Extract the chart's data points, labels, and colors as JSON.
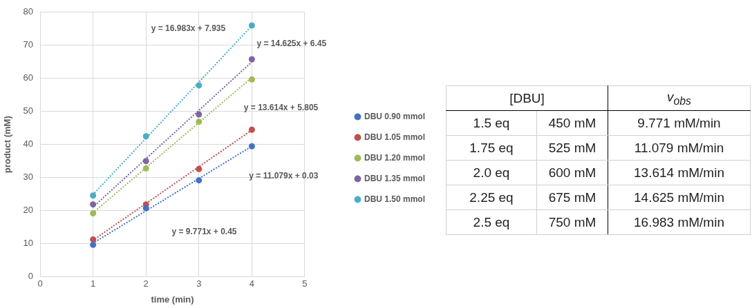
{
  "chart_data": {
    "type": "scatter",
    "xlabel": "time (min)",
    "ylabel": "product (mM)",
    "xlim": [
      0,
      5
    ],
    "xticks": [
      0,
      1,
      2,
      3,
      4,
      5
    ],
    "ylim": [
      0,
      80
    ],
    "yticks": [
      0,
      10,
      20,
      30,
      40,
      50,
      60,
      70,
      80
    ],
    "grid": true,
    "legend": "right",
    "marker": "circle",
    "series": [
      {
        "name": "DBU 0.90 mmol",
        "color": "#4472c4",
        "x": [
          1,
          2,
          3,
          4
        ],
        "values": [
          9.7,
          20.8,
          29.2,
          39.5
        ]
      },
      {
        "name": "DBU 1.05 mmol",
        "color": "#c0504d",
        "x": [
          1,
          2,
          3,
          4
        ],
        "values": [
          11.3,
          21.9,
          32.6,
          44.5
        ]
      },
      {
        "name": "DBU 1.20 mmol",
        "color": "#9bbb59",
        "x": [
          1,
          2,
          3,
          4
        ],
        "values": [
          19.2,
          32.8,
          46.9,
          59.7
        ]
      },
      {
        "name": "DBU 1.35 mmol",
        "color": "#8064a2",
        "x": [
          1,
          2,
          3,
          4
        ],
        "values": [
          21.9,
          35.0,
          49.1,
          65.8
        ]
      },
      {
        "name": "DBU 1.50 mmol",
        "color": "#4bacc6",
        "x": [
          1,
          2,
          3,
          4
        ],
        "values": [
          24.6,
          42.5,
          57.9,
          76.0
        ]
      },
      {
        "type": "line",
        "line_style": "dotted",
        "marker": "none",
        "color": "#4472c4",
        "x": [
          1,
          4
        ],
        "values": [
          10.2,
          39.5
        ]
      },
      {
        "type": "line",
        "line_style": "dotted",
        "marker": "none",
        "color": "#c0504d",
        "x": [
          1,
          4
        ],
        "values": [
          11.1,
          44.4
        ]
      },
      {
        "type": "line",
        "line_style": "dotted",
        "marker": "none",
        "color": "#9bbb59",
        "x": [
          1,
          4
        ],
        "values": [
          19.4,
          60.3
        ]
      },
      {
        "type": "line",
        "line_style": "dotted",
        "marker": "none",
        "color": "#8064a2",
        "x": [
          1,
          4
        ],
        "values": [
          21.1,
          65.0
        ]
      },
      {
        "type": "line",
        "line_style": "dotted",
        "marker": "none",
        "color": "#4bacc6",
        "x": [
          1,
          4
        ],
        "values": [
          24.9,
          75.9
        ]
      }
    ],
    "annotations": [
      "y = 16.983x + 7.935",
      "y = 14.625x + 6.45",
      "y = 13.614x + 5.805",
      "y = 11.079x + 0.03",
      "y = 9.771x + 0.45",
      "[DBU]",
      "v$_{obs}$",
      "1.5 eq",
      "450 mM",
      "9.771 mM/min",
      "1.75 eq",
      "525 mM",
      "11.079 mM/min",
      "2.0 eq",
      "600 mM",
      "13.614 mM/min",
      "2.25 eq",
      "675 mM",
      "14.625 mM/min",
      "2.5 eq",
      "750 mM",
      "16.983 mM/min"
    ]
  }
}
